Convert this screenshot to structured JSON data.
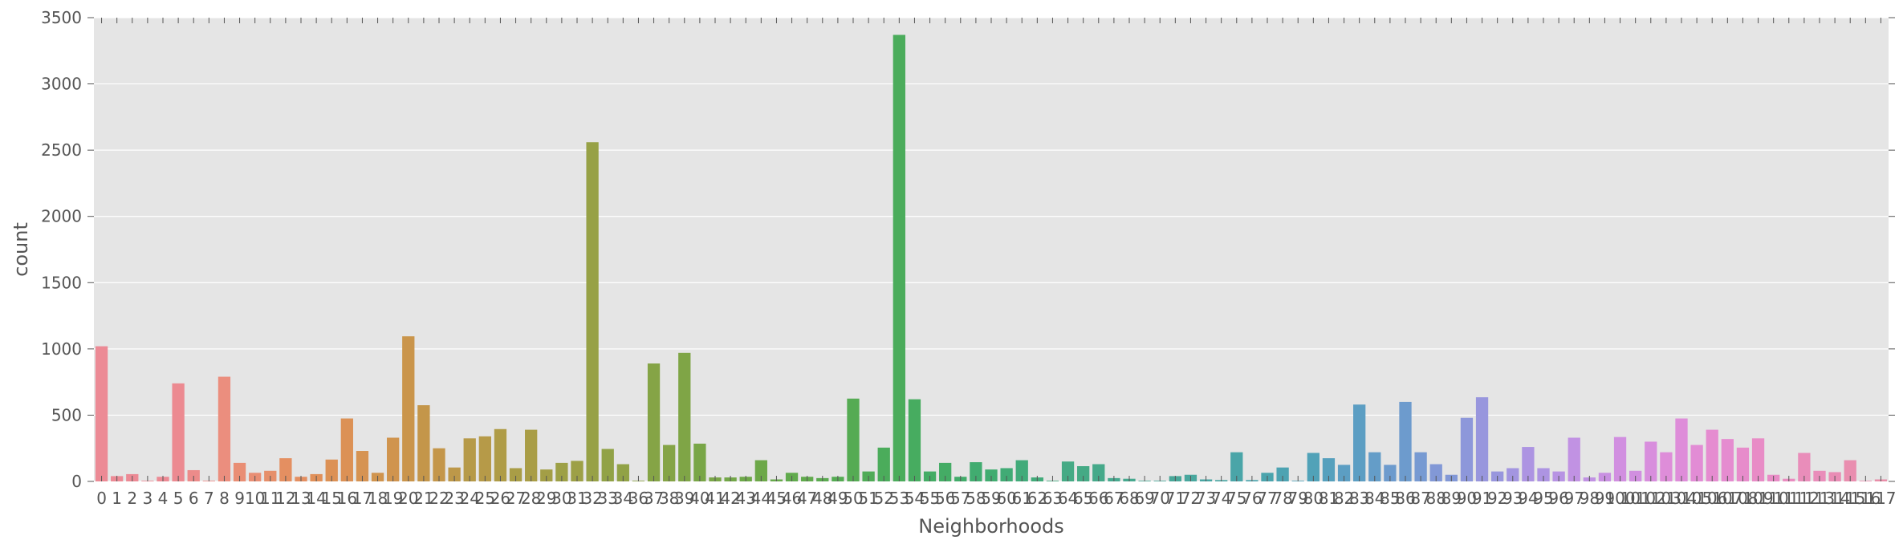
{
  "chart_data": {
    "type": "bar",
    "title": "",
    "xlabel": "Neighborhoods",
    "ylabel": "count",
    "ylim": [
      0,
      3500
    ],
    "yticks": [
      0,
      500,
      1000,
      1500,
      2000,
      2500,
      3000,
      3500
    ],
    "grid": true,
    "legend": "none",
    "categories": [
      "0",
      "1",
      "2",
      "3",
      "4",
      "5",
      "6",
      "7",
      "8",
      "9",
      "10",
      "11",
      "12",
      "13",
      "14",
      "15",
      "16",
      "17",
      "18",
      "19",
      "20",
      "21",
      "22",
      "23",
      "24",
      "25",
      "26",
      "27",
      "28",
      "29",
      "30",
      "31",
      "32",
      "33",
      "34",
      "36",
      "37",
      "38",
      "39",
      "40",
      "41",
      "42",
      "43",
      "44",
      "45",
      "46",
      "47",
      "48",
      "49",
      "50",
      "51",
      "52",
      "53",
      "54",
      "55",
      "56",
      "57",
      "58",
      "59",
      "60",
      "61",
      "62",
      "63",
      "64",
      "65",
      "66",
      "67",
      "68",
      "69",
      "70",
      "71",
      "72",
      "73",
      "74",
      "75",
      "76",
      "77",
      "78",
      "79",
      "80",
      "81",
      "82",
      "83",
      "84",
      "85",
      "86",
      "87",
      "88",
      "89",
      "90",
      "91",
      "92",
      "93",
      "94",
      "95",
      "96",
      "97",
      "98",
      "99",
      "100",
      "101",
      "102",
      "103",
      "104",
      "105",
      "106",
      "107",
      "108",
      "109",
      "110",
      "111",
      "112",
      "113",
      "114",
      "115",
      "116",
      "117"
    ],
    "values": [
      1020,
      40,
      55,
      5,
      35,
      740,
      85,
      5,
      790,
      140,
      65,
      80,
      175,
      35,
      55,
      165,
      475,
      230,
      65,
      330,
      1095,
      575,
      250,
      105,
      325,
      340,
      395,
      100,
      390,
      90,
      140,
      155,
      2560,
      245,
      130,
      5,
      890,
      275,
      970,
      285,
      30,
      30,
      35,
      160,
      15,
      65,
      35,
      25,
      35,
      625,
      75,
      255,
      3370,
      620,
      75,
      140,
      35,
      145,
      90,
      100,
      160,
      30,
      5,
      150,
      115,
      130,
      25,
      20,
      5,
      5,
      40,
      50,
      15,
      10,
      220,
      10,
      65,
      105,
      5,
      215,
      175,
      125,
      580,
      220,
      125,
      600,
      220,
      130,
      50,
      480,
      635,
      75,
      100,
      260,
      100,
      75,
      330,
      30,
      65,
      335,
      80,
      300,
      220,
      475,
      275,
      390,
      320,
      255,
      325,
      50,
      20,
      215,
      80,
      70,
      160,
      5,
      15
    ],
    "colors": [
      "#ec8a95",
      "#ec8a95",
      "#ec8a94",
      "#ec8a91",
      "#ec8b8a",
      "#eb8e7e",
      "#e98e74",
      "#e68f6a",
      "#e48f61",
      "#e19059",
      "#dc9155",
      "#d69352",
      "#d0944e",
      "#ca954b",
      "#c4964a",
      "#bd9849",
      "#b69a48",
      "#af9c47",
      "#a99d46",
      "#a39e46",
      "#9da046",
      "#97a146",
      "#91a246",
      "#8ba346",
      "#85a446",
      "#7fa546",
      "#79a647",
      "#73a748",
      "#6da849",
      "#67a94b",
      "#61aa4d",
      "#5baa50",
      "#55ab53",
      "#50ab57",
      "#4bac5b",
      "#47ac60",
      "#44ac65",
      "#42ac6a",
      "#41ac70",
      "#41ab75",
      "#42ab7a",
      "#43aa80",
      "#45aa85",
      "#46a98a",
      "#47a98f",
      "#48a894",
      "#48a799",
      "#49a79e",
      "#49a6a3",
      "#4aa5a8",
      "#4ba4ad",
      "#4da3b2",
      "#51a2b8",
      "#56a0bd",
      "#5c9ec3",
      "#649dc8",
      "#6d9bcd",
      "#779ad2",
      "#8298d6",
      "#8d97da",
      "#9896dd",
      "#a395e0",
      "#ad94e2",
      "#b793e3",
      "#c192e3",
      "#c990e2",
      "#d18fe0",
      "#d88edd",
      "#de8dd9",
      "#e28cd5",
      "#e58cd0",
      "#e78ccb",
      "#e88cc6",
      "#e98cc0",
      "#e98dba",
      "#e98db5",
      "#e98eaf",
      "#e98ea9"
    ]
  }
}
